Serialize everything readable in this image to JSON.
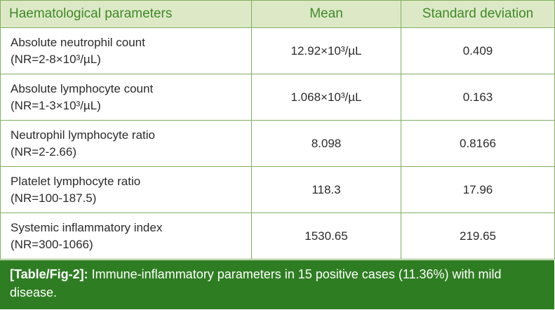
{
  "table": {
    "headers": {
      "name": "Haematological parameters",
      "mean": "Mean",
      "sd": "Standard deviation"
    },
    "rows": [
      {
        "name": "Absolute neutrophil count",
        "range": "(NR=2-8×10³/µL)",
        "mean": "12.92×10³/µL",
        "sd": "0.409"
      },
      {
        "name": "Absolute lymphocyte count",
        "range": "(NR=1-3×10³/µL)",
        "mean": "1.068×10³/µL",
        "sd": "0.163"
      },
      {
        "name": "Neutrophil lymphocyte ratio",
        "range": "(NR=2-2.66)",
        "mean": "8.098",
        "sd": "0.8166"
      },
      {
        "name": "Platelet lymphocyte ratio",
        "range": "(NR=100-187.5)",
        "mean": "118.3",
        "sd": "17.96"
      },
      {
        "name": "Systemic inflammatory index",
        "range": "(NR=300-1066)",
        "mean": "1530.65",
        "sd": "219.65"
      }
    ]
  },
  "caption": {
    "label": "[Table/Fig-2]:",
    "text": " Immune-inflammatory parameters in 15 positive cases (11.36%) with mild disease."
  },
  "colors": {
    "header_bg": "#dde9c6",
    "header_text": "#3f8a28",
    "border": "#7fb060",
    "caption_bg": "#2f7d22",
    "caption_text": "#ffffff"
  }
}
